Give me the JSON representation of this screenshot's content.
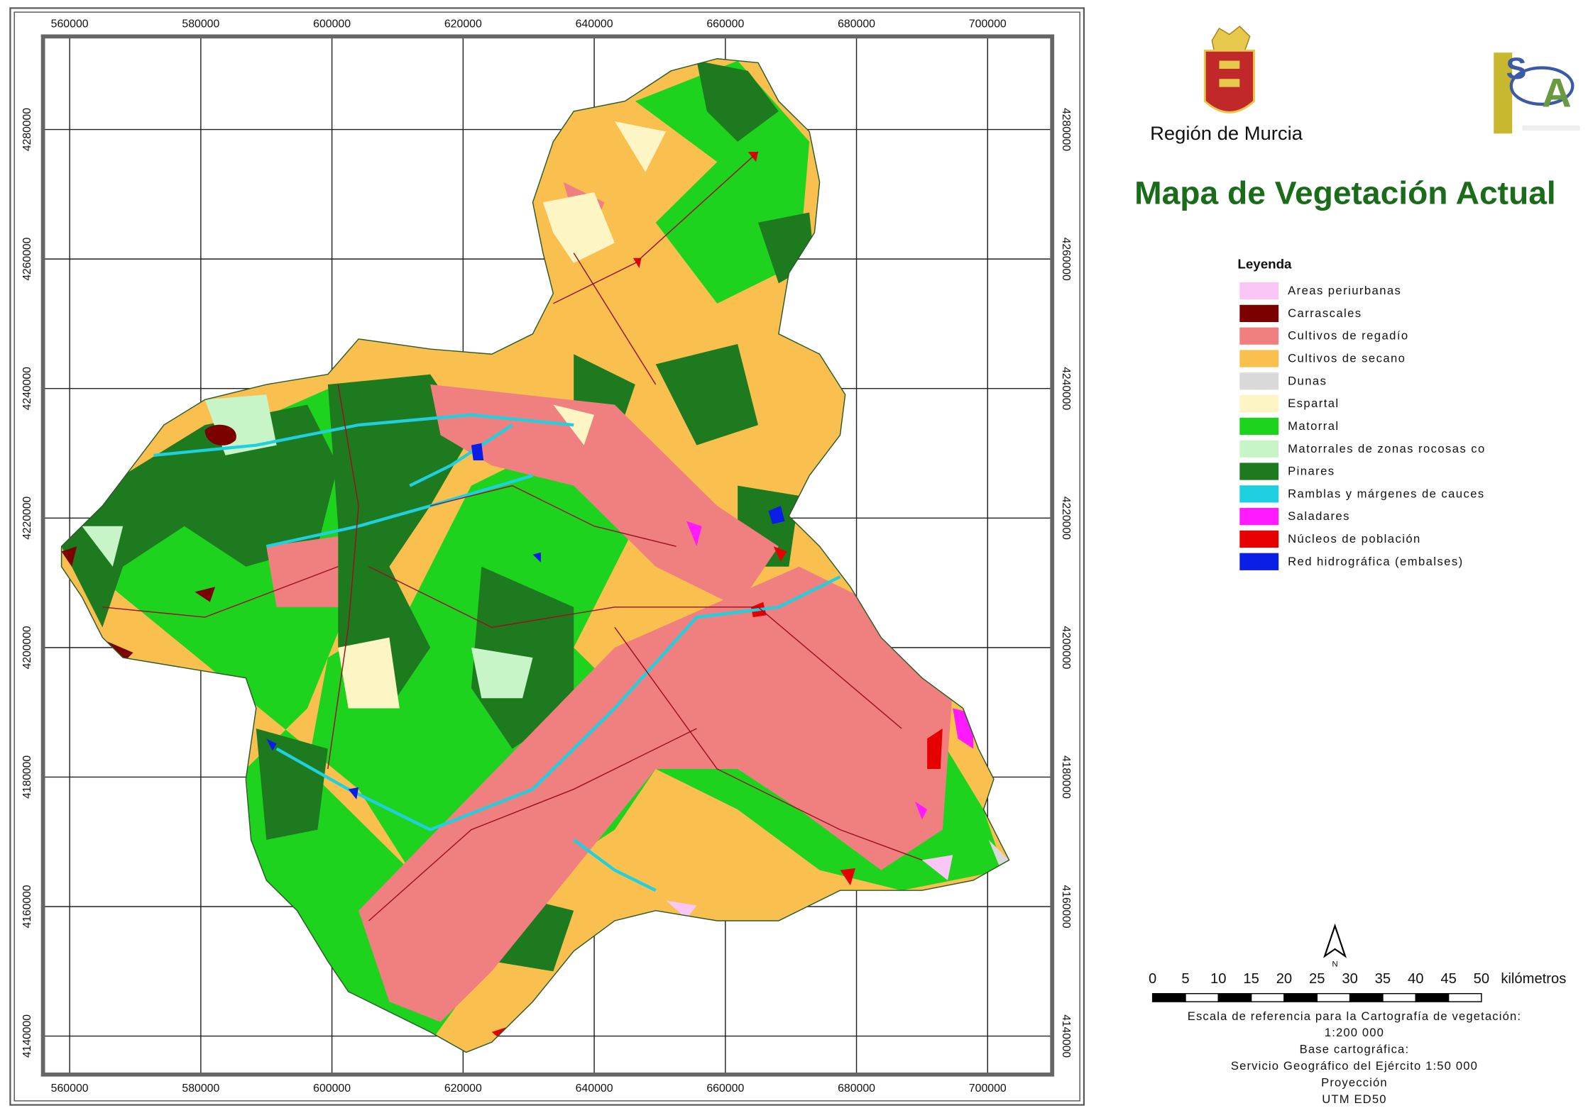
{
  "map": {
    "title": "Mapa de Vegetación Actual",
    "region": "Región de Murcia",
    "x_grid": [
      560000,
      580000,
      600000,
      620000,
      640000,
      660000,
      680000,
      700000
    ],
    "y_grid": [
      4280000,
      4260000,
      4240000,
      4220000,
      4200000,
      4180000,
      4160000,
      4140000
    ]
  },
  "legend": {
    "title": "Leyenda",
    "items": [
      {
        "label": "Areas periurbanas",
        "color": "#f9c6f5"
      },
      {
        "label": "Carrascales",
        "color": "#7b0000"
      },
      {
        "label": "Cultivos de regadío",
        "color": "#f08080"
      },
      {
        "label": "Cultivos de secano",
        "color": "#f9c04f"
      },
      {
        "label": "Dunas",
        "color": "#d9d9d9"
      },
      {
        "label": "Espartal",
        "color": "#fdf5c4"
      },
      {
        "label": "Matorral",
        "color": "#1ed31e"
      },
      {
        "label": "Matorrales de zonas rocosas co",
        "color": "#c8f5c8"
      },
      {
        "label": "Pinares",
        "color": "#1e7a1e"
      },
      {
        "label": "Ramblas y márgenes de cauces",
        "color": "#1ed0e0"
      },
      {
        "label": "Saladares",
        "color": "#ff1aff"
      },
      {
        "label": "Núcleos de población",
        "color": "#e60000"
      },
      {
        "label": "Red hidrográfica (embalses)",
        "color": "#0a1ee6"
      }
    ]
  },
  "scale": {
    "ticks": [
      0,
      5,
      10,
      15,
      20,
      25,
      30,
      35,
      40,
      45,
      50
    ],
    "unit": "kilómetros",
    "north": "N",
    "notes": [
      "Escala de referencia para la Cartografía de vegetación:",
      "1:200 000",
      "Base cartográfica:",
      "Servicio Geográfico del Ejército 1:50 000",
      "Proyección",
      "UTM   ED50"
    ]
  }
}
